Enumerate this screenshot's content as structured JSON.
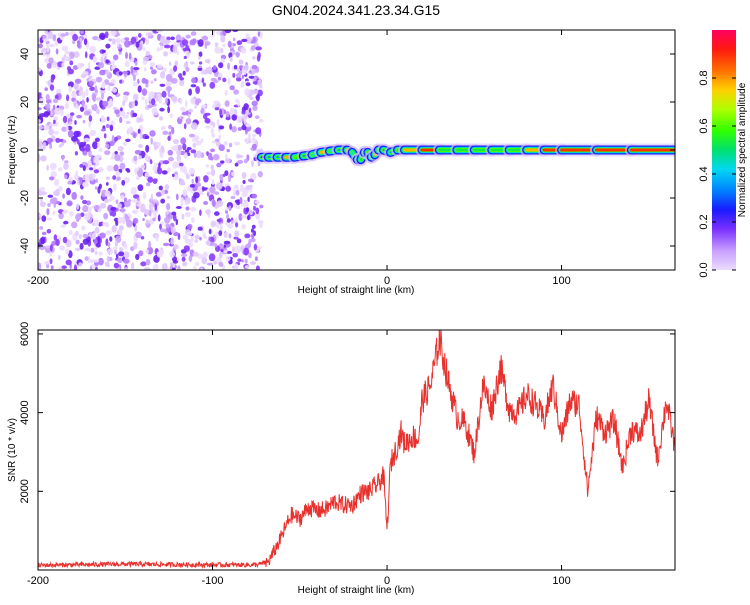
{
  "page_title": "GN04.2024.341.23.34.G15",
  "chart_data": [
    {
      "type": "heatmap",
      "title": "GN04.2024.341.23.34.G15",
      "xlabel": "Height of straight line (km)",
      "ylabel": "Frequency (Hz)",
      "xlim": [
        -200,
        165
      ],
      "ylim": [
        -50,
        50
      ],
      "x_ticks": [
        -200,
        -100,
        0,
        100
      ],
      "y_ticks": [
        -40,
        -20,
        0,
        20,
        40
      ],
      "colorbar": {
        "label": "Normalized spectral amplitude",
        "range": [
          0,
          1
        ],
        "ticks": [
          0.0,
          0.2,
          0.4,
          0.6,
          0.8
        ],
        "colormap": [
          "#e8d8ff",
          "#c9a0ff",
          "#8a3cff",
          "#6a20f0",
          "#1a1aff",
          "#0090ff",
          "#00e0f0",
          "#00e060",
          "#40ff00",
          "#e8ff00",
          "#ffb000",
          "#ff3000",
          "#ff0050"
        ]
      },
      "noise_region_x": [
        -200,
        -72
      ],
      "ridge": {
        "x": [
          -72,
          -68,
          -63,
          -58,
          -53,
          -48,
          -43,
          -38,
          -33,
          -28,
          -23,
          -20,
          -17,
          -15,
          -13,
          -11,
          -9,
          -7,
          -5,
          -2,
          2,
          6,
          10,
          20,
          30,
          40,
          50,
          60,
          70,
          80,
          90,
          100,
          120,
          140,
          165
        ],
        "frequency": [
          -3,
          -3,
          -3,
          -3,
          -3,
          -2.5,
          -2,
          -1,
          -0.5,
          0,
          0,
          -1,
          -4,
          -4,
          -1,
          -1,
          -3,
          -2,
          0,
          0,
          -1,
          0,
          0,
          0,
          0,
          0,
          0,
          0,
          0,
          0,
          0,
          0,
          0,
          0,
          0
        ],
        "amplitude": [
          0.3,
          0.45,
          0.4,
          0.8,
          0.65,
          0.45,
          0.5,
          0.8,
          0.5,
          0.4,
          0.8,
          0.5,
          0.35,
          0.55,
          0.75,
          0.4,
          0.4,
          0.8,
          0.5,
          0.4,
          0.45,
          0.55,
          0.85,
          0.9,
          0.55,
          0.55,
          0.55,
          0.55,
          0.55,
          0.85,
          0.9,
          0.9,
          0.92,
          0.92,
          0.92
        ]
      }
    },
    {
      "type": "line",
      "xlabel": "Height of straight line (km)",
      "ylabel": "SNR (10 * v/v)",
      "xlim": [
        -200,
        165
      ],
      "ylim": [
        0,
        6100
      ],
      "x_ticks": [
        -200,
        -100,
        0,
        100
      ],
      "y_ticks": [
        2000,
        4000,
        6000
      ],
      "color": "#e8302c",
      "x": [
        -200,
        -150,
        -100,
        -75,
        -68,
        -62,
        -55,
        -50,
        -45,
        -40,
        -35,
        -30,
        -25,
        -20,
        -15,
        -10,
        -5,
        -2,
        0,
        2,
        5,
        8,
        10,
        15,
        18,
        20,
        25,
        28,
        30,
        35,
        40,
        45,
        50,
        55,
        60,
        65,
        70,
        75,
        80,
        85,
        90,
        95,
        100,
        105,
        110,
        115,
        120,
        125,
        130,
        135,
        140,
        145,
        150,
        155,
        160,
        165
      ],
      "y": [
        120,
        150,
        130,
        130,
        200,
        700,
        1400,
        1300,
        1600,
        1500,
        1550,
        1750,
        1650,
        1650,
        1950,
        2000,
        2200,
        2400,
        1000,
        2700,
        3050,
        3500,
        3200,
        3400,
        3300,
        4300,
        4700,
        5400,
        5900,
        4800,
        3900,
        3700,
        2950,
        4700,
        4100,
        5150,
        4100,
        4000,
        4450,
        4200,
        3800,
        4700,
        3400,
        4300,
        4200,
        2000,
        3900,
        3500,
        3800,
        2600,
        3600,
        3400,
        4300,
        2800,
        4300,
        3100
      ]
    }
  ]
}
